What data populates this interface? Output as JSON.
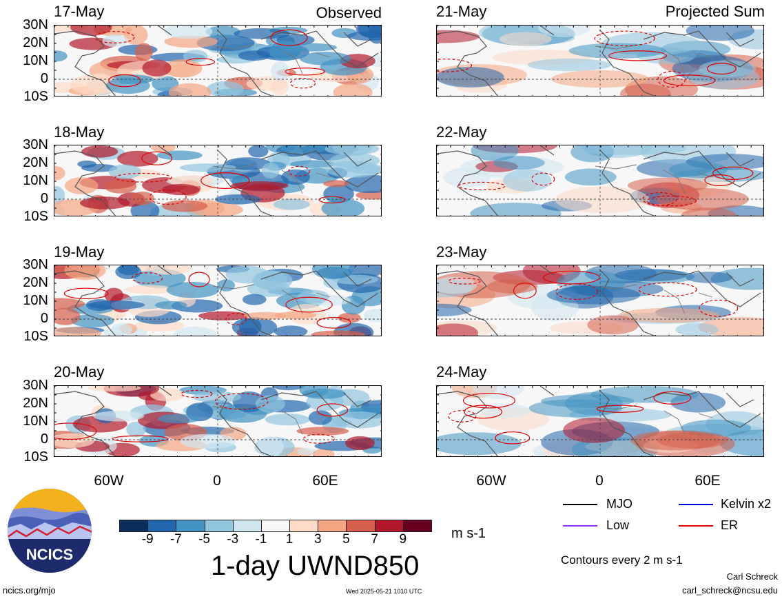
{
  "panels": {
    "observed": [
      {
        "date": "17-May",
        "tag": "Observed"
      },
      {
        "date": "18-May",
        "tag": ""
      },
      {
        "date": "19-May",
        "tag": ""
      },
      {
        "date": "20-May",
        "tag": ""
      }
    ],
    "projected": [
      {
        "date": "21-May",
        "tag": "Projected Sum"
      },
      {
        "date": "22-May",
        "tag": ""
      },
      {
        "date": "23-May",
        "tag": ""
      },
      {
        "date": "24-May",
        "tag": ""
      }
    ]
  },
  "lat_labels": [
    "30N",
    "20N",
    "10N",
    "0",
    "10S"
  ],
  "lon_labels": [
    "60W",
    "0",
    "60E"
  ],
  "colorbar": {
    "ticks": [
      "-9",
      "-7",
      "-5",
      "-3",
      "-1",
      "1",
      "3",
      "5",
      "7",
      "9"
    ],
    "colors": [
      "#0b2e5c",
      "#2166ac",
      "#4393c3",
      "#92c5de",
      "#d1e5f0",
      "#f7f7f7",
      "#fddbc7",
      "#f4a582",
      "#d6604d",
      "#b2182b",
      "#67001f"
    ],
    "units": "m s-1",
    "title": "1-day UWND850"
  },
  "legend": {
    "items": [
      {
        "label": "MJO",
        "color": "#000000"
      },
      {
        "label": "Kelvin x2",
        "color": "#0000dd"
      },
      {
        "label": "Low",
        "color": "#9b30ff"
      },
      {
        "label": "ER",
        "color": "#e00000"
      }
    ],
    "contours_note": "Contours every 2 m s-1"
  },
  "logo": {
    "text": "NCICS"
  },
  "footer": {
    "site": "ncics.org/mjo",
    "timestamp": "Wed 2025-05-21 1010 UTC",
    "author": "Carl Schreck",
    "email": "carl_schreck@ncsu.edu"
  }
}
